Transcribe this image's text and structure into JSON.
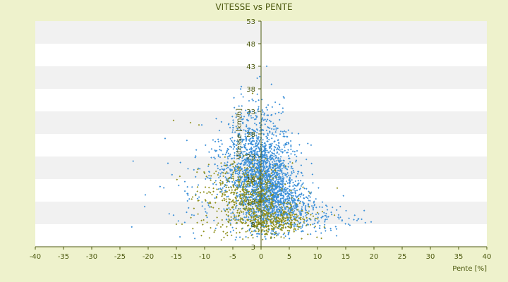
{
  "chart_data": {
    "type": "scatter",
    "title": "VITESSE vs PENTE",
    "xlabel": "Pente [%]",
    "ylabel": "Vitesse [km/h]",
    "xlim": [
      -40,
      40
    ],
    "ylim": [
      3,
      53
    ],
    "x_ticks": [
      -40,
      -35,
      -30,
      -25,
      -20,
      -15,
      -10,
      -5,
      0,
      5,
      10,
      15,
      20,
      25,
      30,
      35,
      40
    ],
    "y_ticks": [
      3,
      8,
      13,
      18,
      23,
      28,
      33,
      38,
      43,
      48,
      53
    ],
    "grid": "horizontal alternating bands",
    "legend": "none",
    "colors": {
      "background": "#eef2cc",
      "band_light": "#ffffff",
      "band_dark": "#f1f1f1",
      "axis": "#4d5a10",
      "text": "#4d5a10",
      "series_blue": "#3a8fd8",
      "series_olive": "#8f8f1a"
    },
    "series": [
      {
        "color": "#3a8fd8",
        "clusters": [
          {
            "cx": 0.5,
            "cy": 17.5,
            "sx": 2.6,
            "sy": 5.5,
            "n": 1500
          },
          {
            "cx": 3.5,
            "cy": 13.0,
            "sx": 2.8,
            "sy": 3.0,
            "n": 500
          },
          {
            "cx": -2.5,
            "cy": 23.5,
            "sx": 2.6,
            "sy": 4.5,
            "n": 350
          },
          {
            "cx": 9.0,
            "cy": 9.0,
            "sx": 4.0,
            "sy": 1.6,
            "n": 120
          },
          {
            "cx": -9.0,
            "cy": 16.0,
            "sx": 4.5,
            "sy": 5.0,
            "n": 120
          },
          {
            "cx": 0.0,
            "cy": 32.0,
            "sx": 2.2,
            "sy": 3.5,
            "n": 70
          }
        ],
        "points": [
          [
            -20.5,
            14.5
          ],
          [
            -16.5,
            21.5
          ],
          [
            -17,
            27
          ],
          [
            -15.5,
            10
          ],
          [
            -10.5,
            30
          ],
          [
            19.5,
            8.5
          ],
          [
            17,
            8.8
          ],
          [
            15.5,
            8
          ],
          [
            1,
            43
          ],
          [
            -3.5,
            38.5
          ],
          [
            -4.8,
            36
          ]
        ]
      },
      {
        "color": "#8f8f1a",
        "clusters": [
          {
            "cx": -1.5,
            "cy": 14.0,
            "sx": 3.0,
            "sy": 3.6,
            "n": 450
          },
          {
            "cx": 2.5,
            "cy": 8.5,
            "sx": 3.2,
            "sy": 1.5,
            "n": 300
          },
          {
            "cx": -7.0,
            "cy": 12.5,
            "sx": 3.5,
            "sy": 4.5,
            "n": 120
          }
        ],
        "points": [
          [
            -15.5,
            31
          ],
          [
            -12.5,
            30.5
          ],
          [
            -15,
            8
          ],
          [
            -14,
            8
          ],
          [
            -11,
            30
          ],
          [
            13.5,
            16
          ],
          [
            -1.5,
            37
          ],
          [
            13,
            10
          ]
        ]
      }
    ]
  }
}
